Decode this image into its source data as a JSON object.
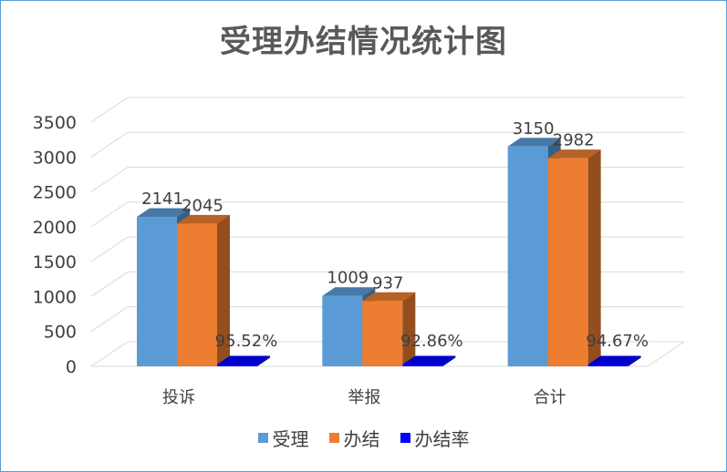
{
  "chart_data": {
    "type": "bar",
    "title": "受理办结情况统计图",
    "categories": [
      "投诉",
      "举报",
      "合计"
    ],
    "series": [
      {
        "name": "受理",
        "values": [
          2141,
          1009,
          3150
        ],
        "labels": [
          "2141",
          "1009",
          "3150"
        ],
        "color": "#5b9bd5"
      },
      {
        "name": "办结",
        "values": [
          2045,
          937,
          2982
        ],
        "labels": [
          "2045",
          "937",
          "2982"
        ],
        "color": "#ed7d31"
      },
      {
        "name": "办结率",
        "values": [
          95.52,
          92.86,
          94.67
        ],
        "labels": [
          "95.52%",
          "92.86%",
          "94.67%"
        ],
        "color": "#0000ff"
      }
    ],
    "ylim": [
      0,
      3500
    ],
    "yticks": [
      "0",
      "500",
      "1000",
      "1500",
      "2000",
      "2500",
      "3000",
      "3500"
    ],
    "grid": true,
    "legend_position": "bottom",
    "style": "3d-clustered-column"
  }
}
